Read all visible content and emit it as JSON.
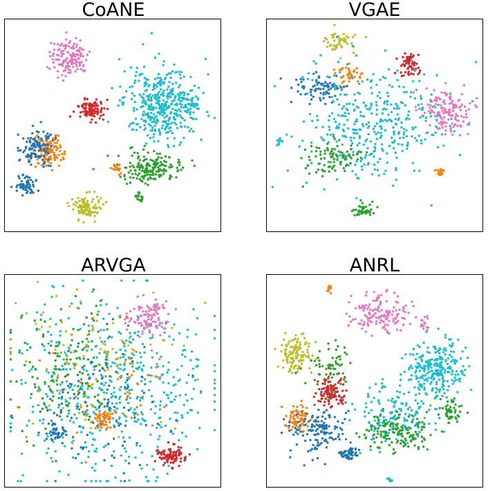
{
  "palette": {
    "blue": "#1f77b4",
    "orange": "#ff7f0e",
    "green": "#2ca02c",
    "red": "#d62728",
    "pink": "#e377c2",
    "olive": "#bcbd22",
    "cyan": "#17becf"
  },
  "chart_data": [
    {
      "type": "scatter",
      "title": "CoANE",
      "grid": false,
      "axes_ticks": false,
      "clusters": [
        {
          "color": "pink",
          "cx": 0.3,
          "cy": 0.18,
          "rx": 0.08,
          "ry": 0.08,
          "n": 140
        },
        {
          "color": "red",
          "cx": 0.4,
          "cy": 0.43,
          "rx": 0.05,
          "ry": 0.045,
          "n": 110
        },
        {
          "color": "cyan",
          "cx": 0.73,
          "cy": 0.4,
          "rx": 0.16,
          "ry": 0.15,
          "n": 420
        },
        {
          "color": "cyan",
          "cx": 0.86,
          "cy": 0.4,
          "rx": 0.04,
          "ry": 0.04,
          "n": 25
        },
        {
          "color": "orange",
          "cx": 0.2,
          "cy": 0.62,
          "rx": 0.06,
          "ry": 0.07,
          "n": 120
        },
        {
          "color": "blue",
          "cx": 0.15,
          "cy": 0.6,
          "rx": 0.07,
          "ry": 0.08,
          "n": 110
        },
        {
          "color": "blue",
          "cx": 0.1,
          "cy": 0.78,
          "rx": 0.04,
          "ry": 0.04,
          "n": 60
        },
        {
          "color": "green",
          "cx": 0.68,
          "cy": 0.7,
          "rx": 0.13,
          "ry": 0.06,
          "n": 180
        },
        {
          "color": "green",
          "cx": 0.62,
          "cy": 0.84,
          "rx": 0.02,
          "ry": 0.02,
          "n": 15
        },
        {
          "color": "olive",
          "cx": 0.38,
          "cy": 0.88,
          "rx": 0.06,
          "ry": 0.05,
          "n": 100
        },
        {
          "color": "orange",
          "cx": 0.52,
          "cy": 0.7,
          "rx": 0.02,
          "ry": 0.02,
          "n": 18
        }
      ]
    },
    {
      "type": "scatter",
      "title": "VGAE",
      "grid": false,
      "axes_ticks": false,
      "clusters": [
        {
          "color": "olive",
          "cx": 0.33,
          "cy": 0.1,
          "rx": 0.08,
          "ry": 0.06,
          "n": 50
        },
        {
          "color": "orange",
          "cx": 0.38,
          "cy": 0.26,
          "rx": 0.05,
          "ry": 0.04,
          "n": 40
        },
        {
          "color": "red",
          "cx": 0.66,
          "cy": 0.22,
          "rx": 0.04,
          "ry": 0.05,
          "n": 60
        },
        {
          "color": "pink",
          "cx": 0.82,
          "cy": 0.43,
          "rx": 0.1,
          "ry": 0.1,
          "n": 150
        },
        {
          "color": "blue",
          "cx": 0.25,
          "cy": 0.33,
          "rx": 0.1,
          "ry": 0.06,
          "n": 80
        },
        {
          "color": "cyan",
          "cx": 0.5,
          "cy": 0.5,
          "rx": 0.3,
          "ry": 0.25,
          "n": 380
        },
        {
          "color": "cyan",
          "cx": 0.06,
          "cy": 0.58,
          "rx": 0.015,
          "ry": 0.02,
          "n": 10
        },
        {
          "color": "green",
          "cx": 0.3,
          "cy": 0.65,
          "rx": 0.12,
          "ry": 0.07,
          "n": 90
        },
        {
          "color": "green",
          "cx": 0.44,
          "cy": 0.9,
          "rx": 0.04,
          "ry": 0.03,
          "n": 45
        },
        {
          "color": "orange",
          "cx": 0.8,
          "cy": 0.72,
          "rx": 0.02,
          "ry": 0.02,
          "n": 18
        }
      ]
    },
    {
      "type": "scatter",
      "title": "ARVGA",
      "grid": false,
      "axes_ticks": false,
      "clusters": [
        {
          "color": "pink",
          "cx": 0.66,
          "cy": 0.2,
          "rx": 0.1,
          "ry": 0.08,
          "n": 110
        },
        {
          "color": "cyan",
          "cx": 0.52,
          "cy": 0.55,
          "rx": 0.4,
          "ry": 0.38,
          "n": 520
        },
        {
          "color": "green",
          "cx": 0.3,
          "cy": 0.45,
          "rx": 0.28,
          "ry": 0.3,
          "n": 170
        },
        {
          "color": "olive",
          "cx": 0.4,
          "cy": 0.4,
          "rx": 0.3,
          "ry": 0.28,
          "n": 100
        },
        {
          "color": "blue",
          "cx": 0.42,
          "cy": 0.6,
          "rx": 0.3,
          "ry": 0.3,
          "n": 110
        },
        {
          "color": "blue",
          "cx": 0.24,
          "cy": 0.74,
          "rx": 0.05,
          "ry": 0.04,
          "n": 40
        },
        {
          "color": "orange",
          "cx": 0.46,
          "cy": 0.68,
          "rx": 0.04,
          "ry": 0.04,
          "n": 50
        },
        {
          "color": "orange",
          "cx": 0.5,
          "cy": 0.5,
          "rx": 0.32,
          "ry": 0.3,
          "n": 50
        },
        {
          "color": "red",
          "cx": 0.77,
          "cy": 0.85,
          "rx": 0.06,
          "ry": 0.04,
          "n": 90
        }
      ]
    },
    {
      "type": "scatter",
      "title": "ANRL",
      "grid": false,
      "axes_ticks": false,
      "clusters": [
        {
          "color": "pink",
          "cx": 0.52,
          "cy": 0.18,
          "rx": 0.12,
          "ry": 0.08,
          "n": 150
        },
        {
          "color": "pink",
          "cx": 0.73,
          "cy": 0.23,
          "rx": 0.02,
          "ry": 0.03,
          "n": 15
        },
        {
          "color": "orange",
          "cx": 0.29,
          "cy": 0.07,
          "rx": 0.015,
          "ry": 0.02,
          "n": 12
        },
        {
          "color": "olive",
          "cx": 0.14,
          "cy": 0.38,
          "rx": 0.07,
          "ry": 0.08,
          "n": 120
        },
        {
          "color": "cyan",
          "cx": 0.78,
          "cy": 0.45,
          "rx": 0.12,
          "ry": 0.12,
          "n": 260
        },
        {
          "color": "cyan",
          "cx": 0.58,
          "cy": 0.65,
          "rx": 0.18,
          "ry": 0.12,
          "n": 160
        },
        {
          "color": "red",
          "cx": 0.3,
          "cy": 0.55,
          "rx": 0.06,
          "ry": 0.06,
          "n": 110
        },
        {
          "color": "orange",
          "cx": 0.15,
          "cy": 0.68,
          "rx": 0.06,
          "ry": 0.06,
          "n": 80
        },
        {
          "color": "blue",
          "cx": 0.25,
          "cy": 0.74,
          "rx": 0.12,
          "ry": 0.1,
          "n": 140
        },
        {
          "color": "blue",
          "cx": 0.38,
          "cy": 0.84,
          "rx": 0.04,
          "ry": 0.03,
          "n": 50
        },
        {
          "color": "green",
          "cx": 0.6,
          "cy": 0.74,
          "rx": 0.14,
          "ry": 0.07,
          "n": 150
        },
        {
          "color": "green",
          "cx": 0.85,
          "cy": 0.64,
          "rx": 0.04,
          "ry": 0.05,
          "n": 50
        },
        {
          "color": "green",
          "cx": 0.3,
          "cy": 0.42,
          "rx": 0.1,
          "ry": 0.1,
          "n": 60
        },
        {
          "color": "cyan",
          "cx": 0.57,
          "cy": 0.96,
          "rx": 0.015,
          "ry": 0.015,
          "n": 8
        }
      ]
    }
  ]
}
